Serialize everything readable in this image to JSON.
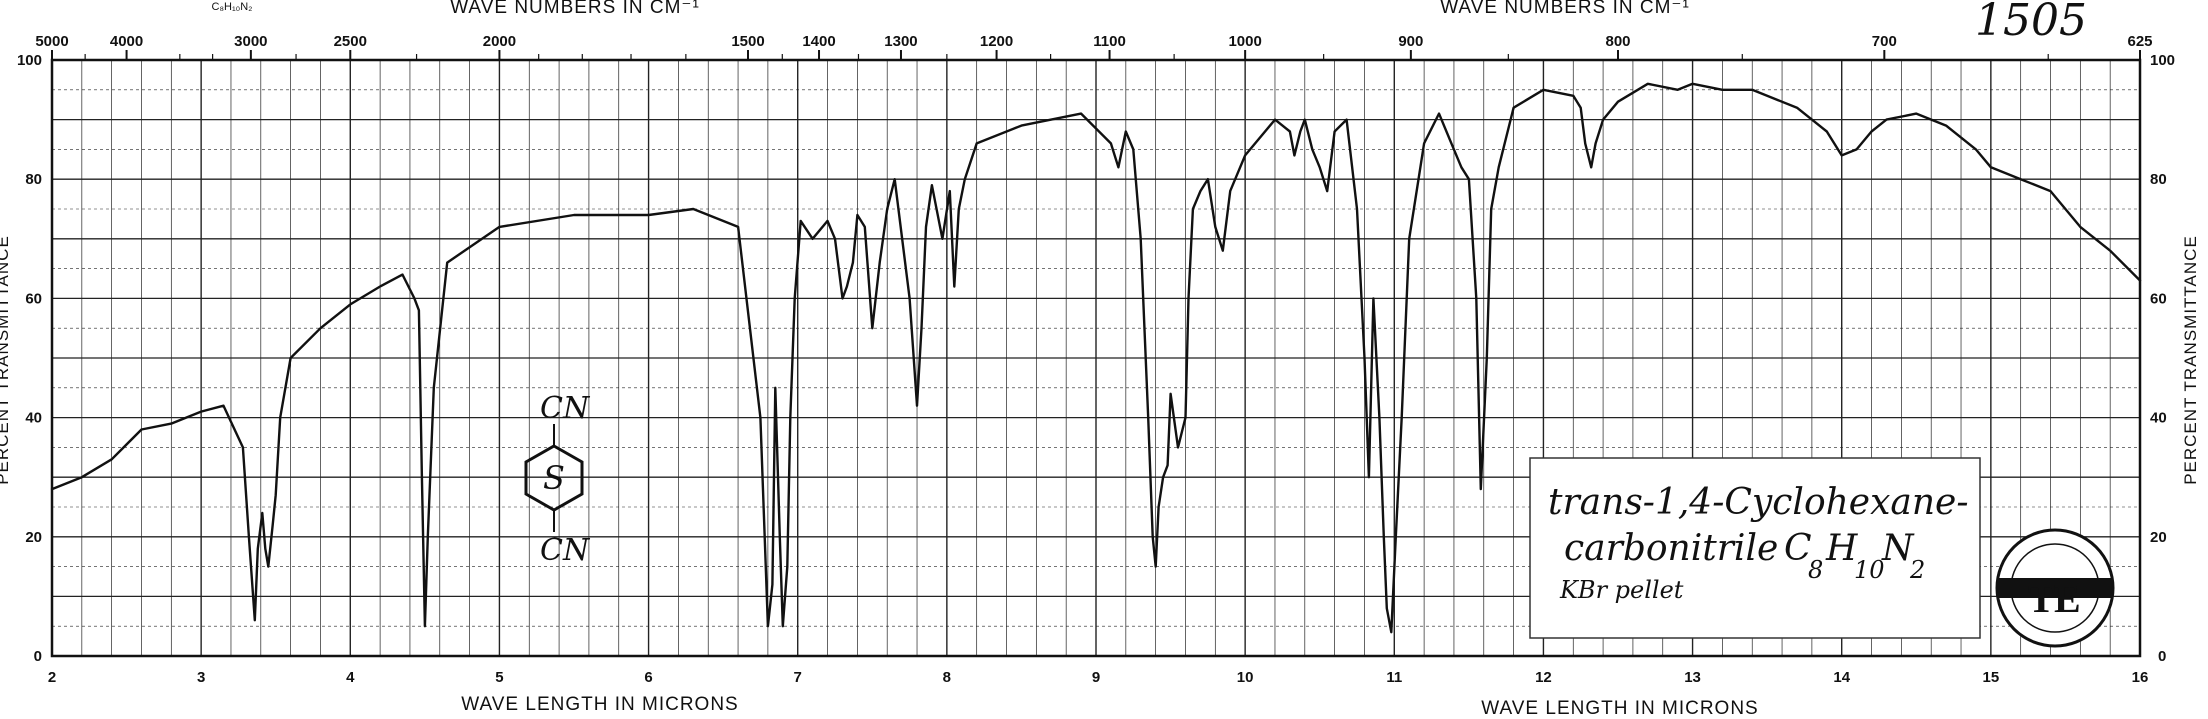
{
  "chart_data": {
    "type": "line",
    "sample_id": "1505",
    "compound_name": "trans-1,4-Cyclohexane-carbonitrile",
    "compound_line1": "trans-1,4-Cyclohexane-",
    "compound_line2": "carbonitrile",
    "formula": "C8H10N2",
    "preparation": "KBr pellet",
    "header_formula": "C₈H₁₀N₂",
    "structure_labels": {
      "top": "CN",
      "bottom": "CN",
      "ring": "S"
    },
    "xlabel_bottom": "WAVE LENGTH IN MICRONS",
    "xlabel_top": "WAVE NUMBERS IN CM⁻¹",
    "ylabel": "PERCENT TRANSMITTANCE",
    "xlim": [
      2,
      16
    ],
    "ylim": [
      0,
      100
    ],
    "x_ticks": [
      2,
      3,
      4,
      5,
      6,
      7,
      8,
      9,
      10,
      11,
      12,
      13,
      14,
      15,
      16
    ],
    "y_ticks": [
      0,
      20,
      40,
      60,
      80,
      100
    ],
    "y_ticks_right": [
      20,
      40,
      60,
      80,
      100
    ],
    "wavenumber_ticks": [
      {
        "cm": 5000,
        "label": "5000"
      },
      {
        "cm": 4000,
        "label": "4000"
      },
      {
        "cm": 3000,
        "label": "3000"
      },
      {
        "cm": 2500,
        "label": "2500"
      },
      {
        "cm": 2000,
        "label": "2000"
      },
      {
        "cm": 1500,
        "label": "1500"
      },
      {
        "cm": 1400,
        "label": "1400"
      },
      {
        "cm": 1300,
        "label": "1300"
      },
      {
        "cm": 1200,
        "label": "1200"
      },
      {
        "cm": 1100,
        "label": "1100"
      },
      {
        "cm": 1000,
        "label": "1000"
      },
      {
        "cm": 900,
        "label": "900"
      },
      {
        "cm": 800,
        "label": "800"
      },
      {
        "cm": 700,
        "label": "700"
      },
      {
        "cm": 625,
        "label": "625"
      }
    ],
    "grid": true,
    "series": [
      {
        "color": "#111111",
        "x": [
          2.0,
          2.2,
          2.4,
          2.6,
          2.8,
          3.0,
          3.15,
          3.28,
          3.32,
          3.36,
          3.38,
          3.41,
          3.43,
          3.45,
          3.48,
          3.5,
          3.53,
          3.6,
          3.8,
          4.0,
          4.2,
          4.35,
          4.43,
          4.46,
          4.48,
          4.5,
          4.52,
          4.56,
          4.65,
          5.0,
          5.5,
          6.0,
          6.3,
          6.6,
          6.75,
          6.8,
          6.83,
          6.85,
          6.88,
          6.9,
          6.93,
          6.95,
          6.98,
          7.02,
          7.1,
          7.2,
          7.25,
          7.3,
          7.33,
          7.37,
          7.4,
          7.45,
          7.5,
          7.55,
          7.6,
          7.65,
          7.75,
          7.8,
          7.83,
          7.86,
          7.9,
          7.97,
          8.02,
          8.05,
          8.08,
          8.12,
          8.2,
          8.5,
          8.9,
          9.1,
          9.15,
          9.2,
          9.25,
          9.3,
          9.35,
          9.38,
          9.4,
          9.42,
          9.45,
          9.48,
          9.5,
          9.55,
          9.6,
          9.62,
          9.65,
          9.7,
          9.75,
          9.8,
          9.85,
          9.9,
          10.0,
          10.2,
          10.3,
          10.33,
          10.37,
          10.4,
          10.45,
          10.5,
          10.55,
          10.6,
          10.68,
          10.75,
          10.8,
          10.83,
          10.86,
          10.9,
          10.93,
          10.95,
          10.98,
          11.01,
          11.05,
          11.1,
          11.2,
          11.3,
          11.4,
          11.45,
          11.5,
          11.55,
          11.58,
          11.62,
          11.65,
          11.7,
          11.8,
          12.0,
          12.2,
          12.25,
          12.28,
          12.32,
          12.35,
          12.4,
          12.5,
          12.7,
          12.9,
          13.0,
          13.2,
          13.4,
          13.5,
          13.7,
          13.9,
          14.0,
          14.1,
          14.2,
          14.3,
          14.5,
          14.7,
          14.9,
          15.0,
          15.2,
          15.4,
          15.6,
          15.8,
          16.0
        ],
        "y": [
          28,
          30,
          33,
          38,
          39,
          41,
          42,
          35,
          20,
          6,
          18,
          24,
          18,
          15,
          22,
          27,
          40,
          50,
          55,
          59,
          62,
          64,
          60,
          58,
          30,
          5,
          20,
          45,
          66,
          72,
          74,
          74,
          75,
          72,
          40,
          5,
          12,
          45,
          20,
          5,
          15,
          40,
          60,
          73,
          70,
          73,
          70,
          60,
          62,
          66,
          74,
          72,
          55,
          66,
          75,
          80,
          60,
          42,
          55,
          72,
          79,
          70,
          78,
          62,
          75,
          80,
          86,
          89,
          91,
          86,
          82,
          88,
          85,
          70,
          40,
          20,
          15,
          25,
          30,
          32,
          44,
          35,
          40,
          60,
          75,
          78,
          80,
          72,
          68,
          78,
          84,
          90,
          88,
          84,
          88,
          90,
          85,
          82,
          78,
          88,
          90,
          75,
          50,
          30,
          60,
          40,
          20,
          8,
          4,
          20,
          40,
          70,
          86,
          91,
          85,
          82,
          80,
          60,
          28,
          50,
          75,
          82,
          92,
          95,
          94,
          92,
          86,
          82,
          86,
          90,
          93,
          96,
          95,
          96,
          95,
          95,
          94,
          92,
          88,
          84,
          85,
          88,
          90,
          91,
          89,
          85,
          82,
          80,
          78,
          72,
          68,
          63
        ]
      }
    ]
  }
}
